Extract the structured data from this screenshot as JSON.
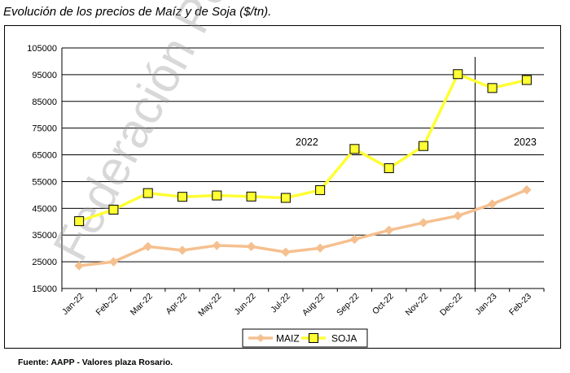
{
  "title": "Evolución de los precios de Maíz y de Soja ($/tn).",
  "source": "Fuente: AAPP - Valores plaza Rosario.",
  "watermark": "Federación Porcina",
  "chart_data": {
    "type": "line",
    "categories": [
      "Jan-22",
      "Feb-22",
      "Mar-22",
      "Apr-22",
      "May-22",
      "Jun-22",
      "Jul-22",
      "Aug-22",
      "Sep-22",
      "Oct-22",
      "Nov-22",
      "Dec-22",
      "Jan-23",
      "Feb-23"
    ],
    "series": [
      {
        "name": "MAIZ",
        "color": "#f5c08f",
        "marker": "diamond",
        "values": [
          23500,
          25000,
          30700,
          29300,
          31100,
          30700,
          28600,
          30100,
          33400,
          36800,
          39600,
          42200,
          46600,
          51900
        ]
      },
      {
        "name": "SOJA",
        "color": "#ffff33",
        "marker": "square",
        "values": [
          40200,
          44500,
          50700,
          49300,
          49800,
          49400,
          48900,
          51800,
          67200,
          60000,
          68300,
          95200,
          90000,
          93000
        ]
      }
    ],
    "ylim": [
      15000,
      105000
    ],
    "yticks": [
      "105000",
      "95000",
      "85000",
      "75000",
      "65000",
      "55000",
      "45000",
      "35000",
      "25000",
      "15000"
    ],
    "ytick_values": [
      105000,
      95000,
      85000,
      75000,
      65000,
      55000,
      45000,
      35000,
      25000,
      15000
    ],
    "grid": true,
    "annotations": [
      "2022",
      "2023"
    ],
    "divider_after_category": "Dec-22",
    "legend_position": "bottom"
  }
}
